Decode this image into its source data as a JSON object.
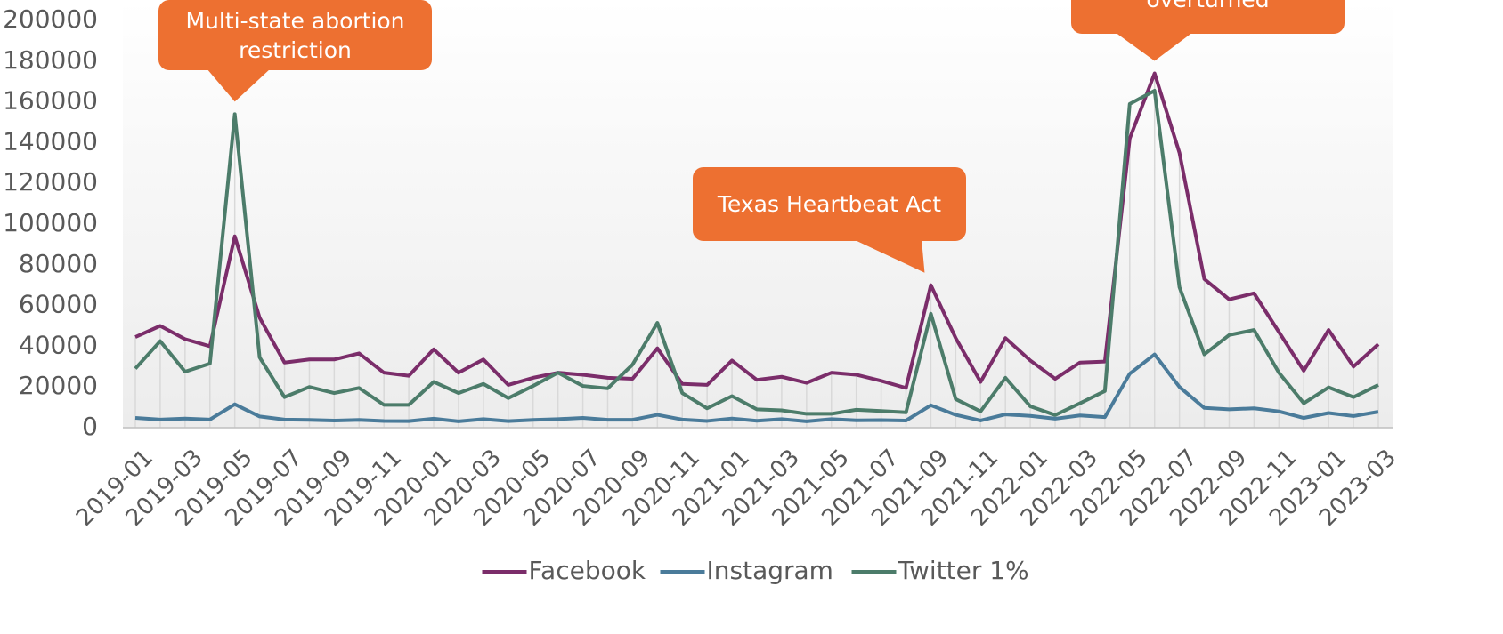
{
  "chart_data": {
    "type": "line",
    "categories": [
      "2019-01",
      null,
      "2019-03",
      null,
      "2019-05",
      null,
      "2019-07",
      null,
      "2019-09",
      null,
      "2019-11",
      null,
      "2020-01",
      null,
      "2020-03",
      null,
      "2020-05",
      null,
      "2020-07",
      null,
      "2020-09",
      null,
      "2020-11",
      null,
      "2021-01",
      null,
      "2021-03",
      null,
      "2021-05",
      null,
      "2021-07",
      null,
      "2021-09",
      null,
      "2021-11",
      null,
      "2022-01",
      null,
      "2022-03",
      null,
      "2022-05",
      null,
      "2022-07",
      null,
      "2022-09",
      null,
      "2022-11",
      null,
      "2023-01",
      null,
      "2023-03"
    ],
    "series": [
      {
        "name": "Facebook",
        "color": "#7b2d6a",
        "values": [
          44500,
          50000,
          43500,
          40000,
          94000,
          54000,
          32000,
          33500,
          33500,
          36500,
          27000,
          25500,
          38500,
          27000,
          33500,
          21000,
          24500,
          27000,
          26000,
          24500,
          24000,
          39000,
          21500,
          21000,
          33000,
          23500,
          25000,
          22000,
          27000,
          26000,
          23000,
          19500,
          70000,
          44000,
          22500,
          44000,
          33000,
          24000,
          32000,
          32500,
          142000,
          174000,
          135000,
          73000,
          63000,
          66000,
          47000,
          28000,
          48000,
          30000,
          41000
        ]
      },
      {
        "name": "Instagram",
        "color": "#4a7b9a",
        "values": [
          4800,
          4000,
          4500,
          4000,
          11500,
          5500,
          4000,
          3800,
          3500,
          3800,
          3300,
          3200,
          4400,
          3100,
          4200,
          3200,
          3800,
          4200,
          4800,
          3900,
          3900,
          6300,
          4000,
          3300,
          4500,
          3400,
          4200,
          3100,
          4200,
          3600,
          3700,
          3500,
          11000,
          6300,
          3500,
          6500,
          5800,
          4400,
          6000,
          5200,
          26500,
          36000,
          20000,
          9700,
          9000,
          9500,
          8000,
          4800,
          7200,
          5700,
          7800
        ]
      },
      {
        "name": "Twitter 1%",
        "color": "#4c7c6a",
        "values": [
          29000,
          42500,
          27500,
          31500,
          154000,
          34500,
          15000,
          20000,
          17000,
          19500,
          11200,
          11200,
          22500,
          17000,
          21500,
          14500,
          20500,
          27000,
          20500,
          19300,
          31000,
          51500,
          17000,
          9500,
          15500,
          9000,
          8500,
          6800,
          6800,
          8800,
          8200,
          7500,
          56000,
          14000,
          8000,
          24500,
          10500,
          6200,
          12000,
          18000,
          159000,
          165500,
          69000,
          36000,
          45500,
          48000,
          27000,
          12000,
          19800,
          15000,
          21000
        ]
      }
    ],
    "ylim": [
      0,
      200000
    ],
    "yticks": [
      0,
      20000,
      40000,
      60000,
      80000,
      100000,
      120000,
      140000,
      160000,
      180000,
      200000
    ],
    "legend": "bottom",
    "annotations": [
      {
        "text": "Multi-state abortion restriction",
        "category_index": 4
      },
      {
        "text": "Texas Heartbeat Act",
        "category_index": 32
      },
      {
        "text": "overturned",
        "category_index": 41
      }
    ]
  }
}
